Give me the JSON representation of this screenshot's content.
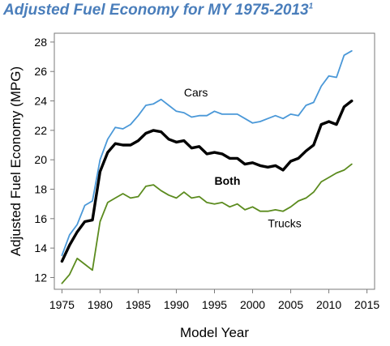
{
  "chart_data": {
    "type": "line",
    "title": "Adjusted Fuel Economy for MY 1975-2013",
    "title_superscript": "1",
    "xlabel": "Model Year",
    "ylabel": "Adjusted Fuel Economy (MPG)",
    "xlim": [
      1974,
      2016
    ],
    "ylim": [
      11.2,
      28.6
    ],
    "xticks": [
      1975,
      1980,
      1985,
      1990,
      1995,
      2000,
      2005,
      2010,
      2015
    ],
    "yticks": [
      12,
      14,
      16,
      18,
      20,
      22,
      24,
      26,
      28
    ],
    "grid": false,
    "legend": "none",
    "x": [
      1975,
      1976,
      1977,
      1978,
      1979,
      1980,
      1981,
      1982,
      1983,
      1984,
      1985,
      1986,
      1987,
      1988,
      1989,
      1990,
      1991,
      1992,
      1993,
      1994,
      1995,
      1996,
      1997,
      1998,
      1999,
      2000,
      2001,
      2002,
      2003,
      2004,
      2005,
      2006,
      2007,
      2008,
      2009,
      2010,
      2011,
      2012,
      2013
    ],
    "series": [
      {
        "name": "Cars",
        "color": "#4a98d8",
        "values": [
          13.5,
          14.9,
          15.6,
          16.9,
          17.2,
          20.0,
          21.4,
          22.2,
          22.1,
          22.4,
          23.0,
          23.7,
          23.8,
          24.1,
          23.7,
          23.3,
          23.2,
          22.9,
          23.0,
          23.0,
          23.3,
          23.1,
          23.1,
          23.1,
          22.8,
          22.5,
          22.6,
          22.8,
          23.0,
          22.8,
          23.1,
          23.0,
          23.7,
          23.9,
          25.0,
          25.7,
          25.6,
          27.1,
          27.4
        ]
      },
      {
        "name": "Both",
        "color": "#000000",
        "values": [
          13.1,
          14.2,
          15.1,
          15.8,
          15.9,
          19.2,
          20.5,
          21.1,
          21.0,
          21.0,
          21.3,
          21.8,
          22.0,
          21.9,
          21.4,
          21.2,
          21.3,
          20.8,
          20.9,
          20.4,
          20.5,
          20.4,
          20.1,
          20.1,
          19.7,
          19.8,
          19.6,
          19.5,
          19.6,
          19.3,
          19.9,
          20.1,
          20.6,
          21.0,
          22.4,
          22.6,
          22.4,
          23.6,
          24.0
        ]
      },
      {
        "name": "Trucks",
        "color": "#5b8b1e",
        "values": [
          11.6,
          12.2,
          13.3,
          12.9,
          12.5,
          15.8,
          17.1,
          17.4,
          17.7,
          17.4,
          17.5,
          18.2,
          18.3,
          17.9,
          17.6,
          17.4,
          17.8,
          17.4,
          17.5,
          17.1,
          17.0,
          17.1,
          16.8,
          17.0,
          16.6,
          16.8,
          16.5,
          16.5,
          16.6,
          16.5,
          16.8,
          17.2,
          17.4,
          17.8,
          18.5,
          18.8,
          19.1,
          19.3,
          19.7
        ]
      }
    ],
    "series_labels": [
      {
        "text": "Cars",
        "x": 1991,
        "y": 24.3
      },
      {
        "text": "Both",
        "x": 1995,
        "y": 18.3
      },
      {
        "text": "Trucks",
        "x": 2002,
        "y": 15.4
      }
    ]
  }
}
